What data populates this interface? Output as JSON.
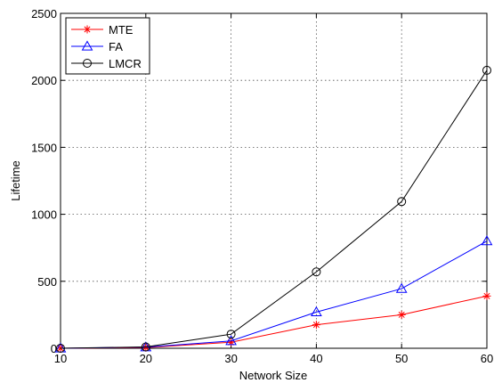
{
  "chart_data": {
    "type": "line",
    "title": "",
    "xlabel": "Network Size",
    "ylabel": "Lifetime",
    "x": [
      10,
      20,
      30,
      40,
      50,
      60
    ],
    "xlim": [
      10,
      60
    ],
    "ylim": [
      0,
      2500
    ],
    "xticks": [
      "10",
      "20",
      "30",
      "40",
      "50",
      "60"
    ],
    "yticks": [
      "0",
      "500",
      "1000",
      "1500",
      "2000",
      "2500"
    ],
    "grid": true,
    "legend_position": "top-left",
    "series": [
      {
        "name": "MTE",
        "color": "#ff0000",
        "marker": "asterisk",
        "values": [
          0,
          5,
          45,
          175,
          250,
          390
        ]
      },
      {
        "name": "FA",
        "color": "#0000ff",
        "marker": "triangle",
        "values": [
          0,
          8,
          55,
          270,
          445,
          800
        ]
      },
      {
        "name": "LMCR",
        "color": "#000000",
        "marker": "circle",
        "values": [
          0,
          10,
          105,
          570,
          1095,
          2075
        ]
      }
    ]
  }
}
